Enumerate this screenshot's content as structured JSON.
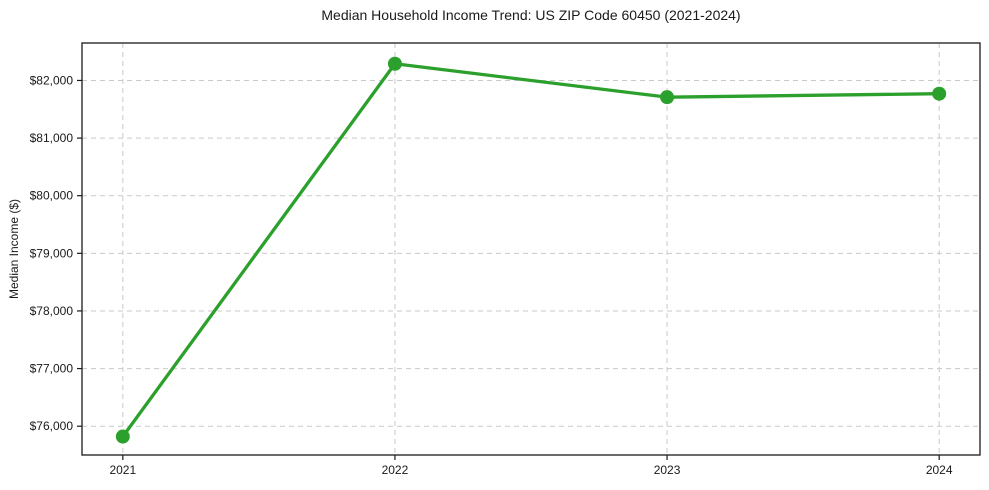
{
  "chart_data": {
    "type": "line",
    "title": "Median Household Income Trend: US ZIP Code 60450 (2021-2024)",
    "xlabel": "",
    "ylabel": "Median Income ($)",
    "x": [
      2021,
      2022,
      2023,
      2024
    ],
    "x_tick_labels": [
      "2021",
      "2022",
      "2023",
      "2024"
    ],
    "values": [
      75820,
      82290,
      81710,
      81770
    ],
    "series_name": "Median household income",
    "y_ticks": [
      76000,
      77000,
      78000,
      79000,
      80000,
      81000,
      82000
    ],
    "y_tick_labels": [
      "$76,000",
      "$77,000",
      "$78,000",
      "$79,000",
      "$80,000",
      "$81,000",
      "$82,000"
    ],
    "xlim": [
      2020.85,
      2024.15
    ],
    "ylim": [
      75500,
      82650
    ],
    "grid": true,
    "legend": null,
    "line_color": "#2ca02c",
    "marker": "circle",
    "grid_color": "#c9c9c9",
    "text_color": "#1a1a1a",
    "background_color": "#ffffff"
  }
}
